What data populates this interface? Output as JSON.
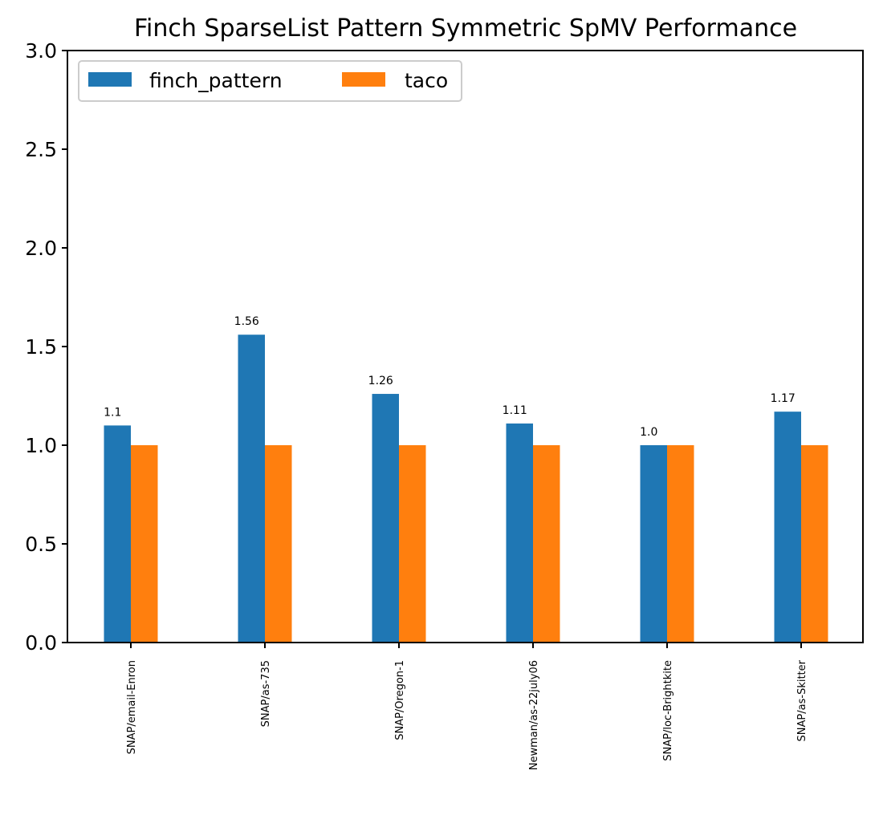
{
  "chart_data": {
    "type": "bar",
    "title": "Finch SparseList Pattern Symmetric SpMV Performance",
    "xlabel": "",
    "ylabel": "",
    "ylim": [
      0,
      3
    ],
    "yticks": [
      "0.0",
      "0.5",
      "1.0",
      "1.5",
      "2.0",
      "2.5",
      "3.0"
    ],
    "categories": [
      "SNAP/email-Enron",
      "SNAP/as-735",
      "SNAP/Oregon-1",
      "Newman/as-22july06",
      "SNAP/loc-Brightkite",
      "SNAP/as-Skitter"
    ],
    "series": [
      {
        "name": "finch_pattern",
        "color": "#1f77b4",
        "values": [
          1.1,
          1.56,
          1.26,
          1.11,
          1.0,
          1.17
        ],
        "labels": [
          "1.1",
          "1.56",
          "1.26",
          "1.11",
          "1.0",
          "1.17"
        ]
      },
      {
        "name": "taco",
        "color": "#ff7f0e",
        "values": [
          1.0,
          1.0,
          1.0,
          1.0,
          1.0,
          1.0
        ]
      }
    ],
    "legend_position": "top-left",
    "grid": false
  }
}
